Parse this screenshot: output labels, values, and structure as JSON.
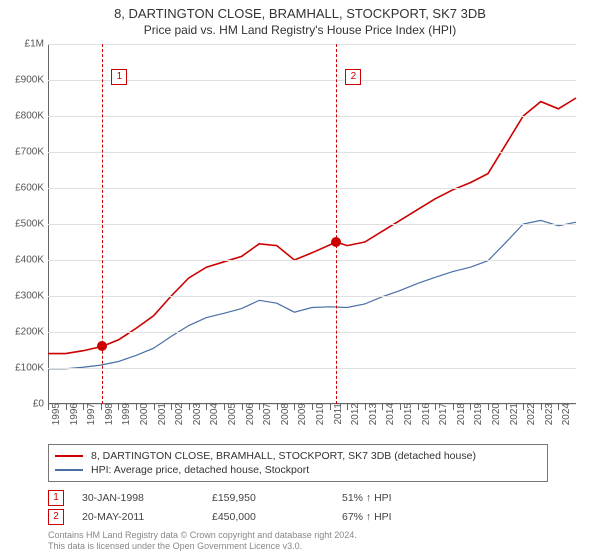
{
  "title": "8, DARTINGTON CLOSE, BRAMHALL, STOCKPORT, SK7 3DB",
  "subtitle": "Price paid vs. HM Land Registry's House Price Index (HPI)",
  "chart": {
    "type": "line",
    "background_color": "#ffffff",
    "grid_color": "#e0e0e0",
    "axis_color": "#666666",
    "label_color": "#555555",
    "label_fontsize": 10,
    "x_min": 1995,
    "x_max": 2025,
    "y_min": 0,
    "y_max": 1000000,
    "y_ticks": [
      0,
      100000,
      200000,
      300000,
      400000,
      500000,
      600000,
      700000,
      800000,
      900000,
      1000000
    ],
    "y_tick_labels": [
      "£0",
      "£100K",
      "£200K",
      "£300K",
      "£400K",
      "£500K",
      "£600K",
      "£700K",
      "£800K",
      "£900K",
      "£1M"
    ],
    "x_ticks": [
      1995,
      1996,
      1997,
      1998,
      1999,
      2000,
      2001,
      2002,
      2003,
      2004,
      2005,
      2006,
      2007,
      2008,
      2009,
      2010,
      2011,
      2012,
      2013,
      2014,
      2015,
      2016,
      2017,
      2018,
      2019,
      2020,
      2021,
      2022,
      2023,
      2024
    ],
    "shade": {
      "from": 1998.08,
      "to": 2011.38,
      "color": "#e8f0f8"
    },
    "event_lines": [
      {
        "x": 1998.08,
        "color": "#cc0000"
      },
      {
        "x": 2011.38,
        "color": "#cc0000"
      }
    ],
    "event_markers": [
      {
        "n": "1",
        "x": 1998.6,
        "y_val": 930000,
        "color": "#cc0000"
      },
      {
        "n": "2",
        "x": 2011.9,
        "y_val": 930000,
        "color": "#cc0000"
      }
    ],
    "sale_dots": [
      {
        "x": 1998.08,
        "y_val": 159950,
        "color": "#cc0000"
      },
      {
        "x": 2011.38,
        "y_val": 450000,
        "color": "#cc0000"
      }
    ],
    "series": [
      {
        "id": "property",
        "label": "8, DARTINGTON CLOSE, BRAMHALL, STOCKPORT, SK7 3DB (detached house)",
        "color": "#cc0000",
        "width": 1.6,
        "points": [
          [
            1995,
            140000
          ],
          [
            1996,
            140000
          ],
          [
            1997,
            148000
          ],
          [
            1998.08,
            159950
          ],
          [
            1999,
            178000
          ],
          [
            2000,
            210000
          ],
          [
            2001,
            245000
          ],
          [
            2002,
            300000
          ],
          [
            2003,
            350000
          ],
          [
            2004,
            380000
          ],
          [
            2005,
            395000
          ],
          [
            2006,
            410000
          ],
          [
            2007,
            445000
          ],
          [
            2008,
            440000
          ],
          [
            2009,
            400000
          ],
          [
            2010,
            420000
          ],
          [
            2011.38,
            450000
          ],
          [
            2012,
            440000
          ],
          [
            2013,
            450000
          ],
          [
            2014,
            480000
          ],
          [
            2015,
            510000
          ],
          [
            2016,
            540000
          ],
          [
            2017,
            570000
          ],
          [
            2018,
            595000
          ],
          [
            2019,
            615000
          ],
          [
            2020,
            640000
          ],
          [
            2021,
            720000
          ],
          [
            2022,
            800000
          ],
          [
            2023,
            840000
          ],
          [
            2024,
            820000
          ],
          [
            2025,
            850000
          ]
        ]
      },
      {
        "id": "hpi",
        "label": "HPI: Average price, detached house, Stockport",
        "color": "#4a6fa5",
        "width": 1.2,
        "points": [
          [
            1995,
            98000
          ],
          [
            1996,
            98000
          ],
          [
            1997,
            102000
          ],
          [
            1998,
            108000
          ],
          [
            1999,
            118000
          ],
          [
            2000,
            135000
          ],
          [
            2001,
            155000
          ],
          [
            2002,
            188000
          ],
          [
            2003,
            218000
          ],
          [
            2004,
            240000
          ],
          [
            2005,
            252000
          ],
          [
            2006,
            265000
          ],
          [
            2007,
            288000
          ],
          [
            2008,
            280000
          ],
          [
            2009,
            255000
          ],
          [
            2010,
            268000
          ],
          [
            2011,
            270000
          ],
          [
            2012,
            268000
          ],
          [
            2013,
            278000
          ],
          [
            2014,
            298000
          ],
          [
            2015,
            315000
          ],
          [
            2016,
            335000
          ],
          [
            2017,
            352000
          ],
          [
            2018,
            368000
          ],
          [
            2019,
            380000
          ],
          [
            2020,
            398000
          ],
          [
            2021,
            448000
          ],
          [
            2022,
            500000
          ],
          [
            2023,
            510000
          ],
          [
            2024,
            495000
          ],
          [
            2025,
            505000
          ]
        ]
      }
    ]
  },
  "legend": {
    "border_color": "#777777",
    "items": [
      {
        "color": "#cc0000",
        "label": "8, DARTINGTON CLOSE, BRAMHALL, STOCKPORT, SK7 3DB (detached house)"
      },
      {
        "color": "#4a6fa5",
        "label": "HPI: Average price, detached house, Stockport"
      }
    ]
  },
  "events_table": {
    "box_color": "#cc0000",
    "rows": [
      {
        "n": "1",
        "date": "30-JAN-1998",
        "price": "£159,950",
        "pct": "51% ↑ HPI"
      },
      {
        "n": "2",
        "date": "20-MAY-2011",
        "price": "£450,000",
        "pct": "67% ↑ HPI"
      }
    ]
  },
  "attribution": {
    "line1": "Contains HM Land Registry data © Crown copyright and database right 2024.",
    "line2": "This data is licensed under the Open Government Licence v3.0."
  }
}
